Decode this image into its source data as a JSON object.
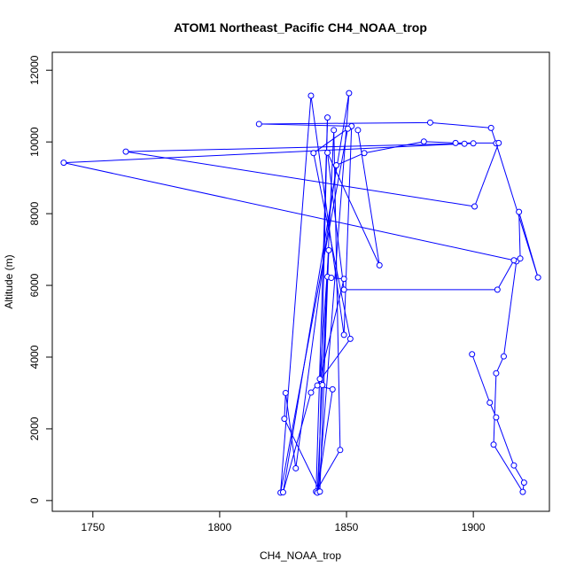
{
  "chart_data": {
    "type": "scatter",
    "title": "ATOM1 Northeast_Pacific CH4_NOAA_trop",
    "xlabel": "CH4_NOAA_trop",
    "ylabel": "Altitude (m)",
    "xlim": [
      1734,
      1930
    ],
    "ylim": [
      -300,
      12500
    ],
    "xticks": [
      1750,
      1800,
      1850,
      1900
    ],
    "yticks": [
      0,
      2000,
      4000,
      6000,
      8000,
      10000,
      12000
    ],
    "grid": false,
    "legend": "none",
    "series": [
      {
        "color": "#0000ff",
        "marker": "open-circle",
        "connected": true,
        "points": [
          [
            1899.5,
            4080
          ],
          [
            1906.5,
            2730
          ],
          [
            1909.0,
            2320
          ],
          [
            1916.0,
            980
          ],
          [
            1920.0,
            500
          ],
          [
            1919.5,
            240
          ],
          [
            1908.0,
            1560
          ],
          [
            1909.0,
            3550
          ],
          [
            1912.0,
            4020
          ],
          [
            1917.0,
            6670
          ],
          [
            1918.5,
            6750
          ],
          [
            1918.0,
            8050
          ],
          [
            1925.5,
            6220
          ],
          [
            1909.0,
            9960
          ],
          [
            1907.0,
            10390
          ],
          [
            1883.0,
            10540
          ],
          [
            1815.5,
            10500
          ],
          [
            1852.0,
            10440
          ],
          [
            1849.0,
            4620
          ],
          [
            1836.0,
            11290
          ],
          [
            1824.0,
            220
          ],
          [
            1850.5,
            10370
          ],
          [
            1837.0,
            9690
          ],
          [
            1851.5,
            4510
          ],
          [
            1836.0,
            3010
          ],
          [
            1825.0,
            230
          ],
          [
            1851.0,
            11360
          ],
          [
            1839.0,
            260
          ],
          [
            1842.5,
            10680
          ],
          [
            1838.0,
            250
          ],
          [
            1847.5,
            1410
          ],
          [
            1845.0,
            10330
          ],
          [
            1838.5,
            220
          ],
          [
            1844.5,
            3100
          ],
          [
            1838.5,
            3210
          ],
          [
            1840.5,
            3220
          ],
          [
            1842.5,
            6240
          ],
          [
            1844.0,
            6210
          ],
          [
            1849.0,
            6180
          ],
          [
            1839.5,
            3390
          ],
          [
            1843.0,
            6980
          ],
          [
            1839.5,
            250
          ],
          [
            1825.5,
            2280
          ],
          [
            1826.0,
            3000
          ],
          [
            1830.0,
            900
          ],
          [
            1846.0,
            9350
          ],
          [
            1857.0,
            9690
          ],
          [
            1880.5,
            10010
          ],
          [
            1893.0,
            9970
          ],
          [
            1910.0,
            9970
          ],
          [
            1900.5,
            8200
          ],
          [
            1763.0,
            9730
          ],
          [
            1900.0,
            9960
          ],
          [
            1896.5,
            9950
          ],
          [
            1738.5,
            9420
          ],
          [
            1916.0,
            6700
          ],
          [
            1909.5,
            5880
          ],
          [
            1849.0,
            5880
          ],
          [
            1842.5,
            9700
          ],
          [
            1863.0,
            6560
          ],
          [
            1854.5,
            10330
          ]
        ]
      }
    ]
  }
}
